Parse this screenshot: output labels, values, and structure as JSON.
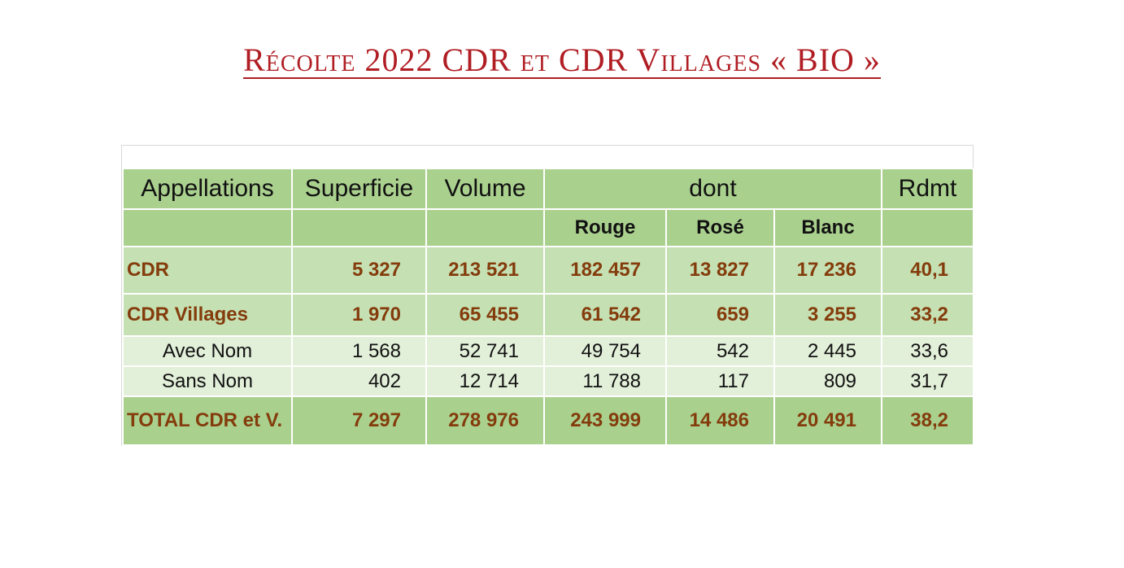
{
  "title": "Récolte 2022 CDR et CDR Villages « BIO »",
  "table": {
    "headers": {
      "appellations": "Appellations",
      "superficie": "Superficie",
      "volume": "Volume",
      "dont": "dont",
      "rdmt": "Rdmt",
      "rouge": "Rouge",
      "rose": "Rosé",
      "blanc": "Blanc"
    },
    "rows": [
      {
        "name": "CDR",
        "superficie": "5 327",
        "volume": "213 521",
        "rouge": "182 457",
        "rose": "13 827",
        "blanc": "17 236",
        "rdmt": "40,1"
      },
      {
        "name": "CDR Villages",
        "superficie": "1 970",
        "volume": "65 455",
        "rouge": "61 542",
        "rose": "659",
        "blanc": "3 255",
        "rdmt": "33,2"
      },
      {
        "name": "Avec Nom",
        "superficie": "1 568",
        "volume": "52 741",
        "rouge": "49 754",
        "rose": "542",
        "blanc": "2 445",
        "rdmt": "33,6"
      },
      {
        "name": "Sans Nom",
        "superficie": "402",
        "volume": "12 714",
        "rouge": "11 788",
        "rose": "117",
        "blanc": "809",
        "rdmt": "31,7"
      },
      {
        "name": "TOTAL CDR et V.",
        "superficie": "7 297",
        "volume": "278 976",
        "rouge": "243 999",
        "rose": "14 486",
        "blanc": "20 491",
        "rdmt": "38,2"
      }
    ]
  },
  "colors": {
    "title": "#b01e24",
    "header_bg": "#aad08e",
    "main_row_bg": "#c5e0b3",
    "sub_row_bg": "#e2efd9",
    "main_text": "#843c0c"
  }
}
